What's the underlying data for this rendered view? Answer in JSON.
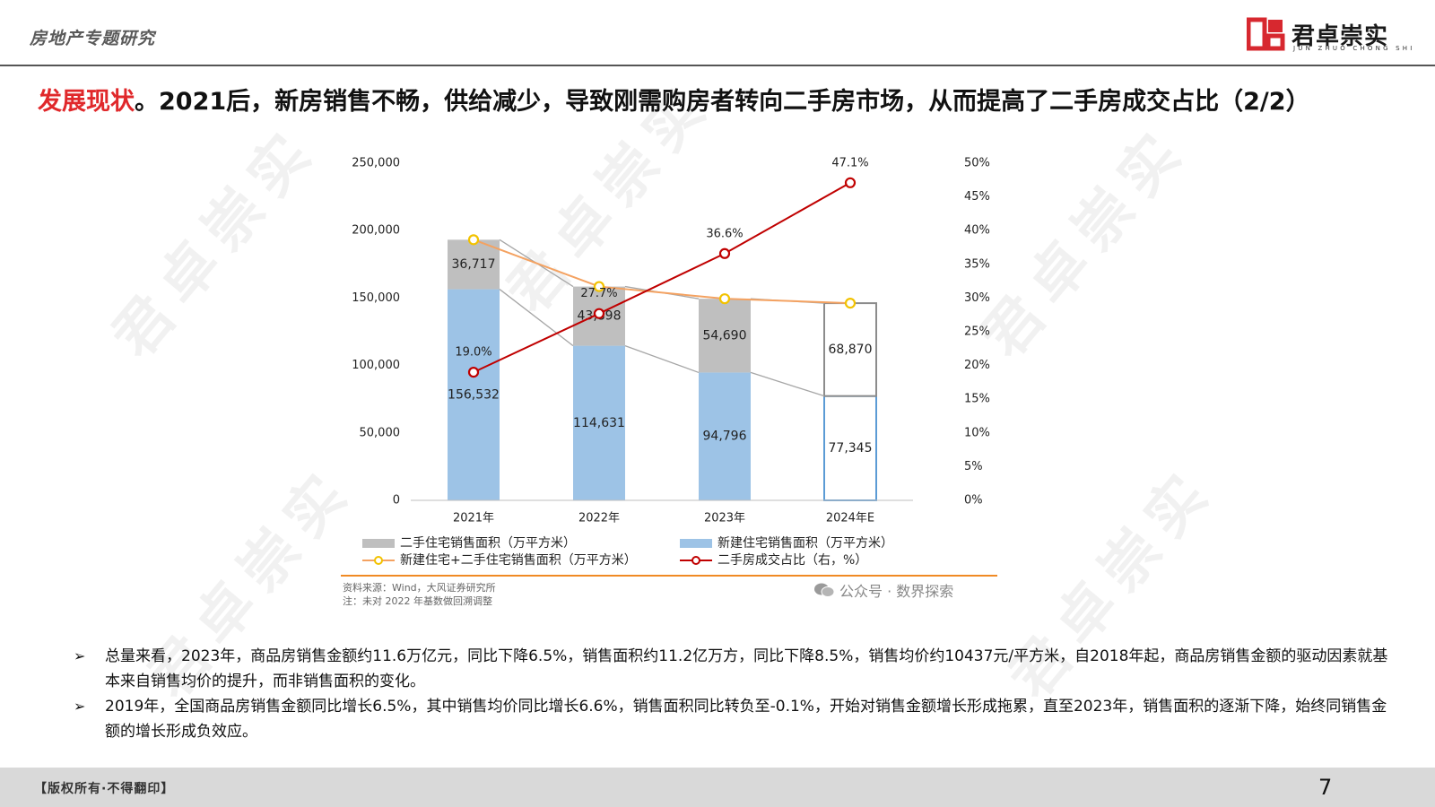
{
  "header": {
    "title": "房地产专题研究",
    "logo_text": "君卓崇实",
    "logo_sub": "JUN ZHUO CHONG SHI"
  },
  "slide": {
    "title_highlight": "发展现状",
    "title_rest": "。2021后，新房销售不畅，供给减少，导致刚需购房者转向二手房市场，从而提高了二手房成交占比（2/2）"
  },
  "watermark": "君卓崇实",
  "chart_data": {
    "type": "bar",
    "categories": [
      "2021年",
      "2022年",
      "2023年",
      "2024年E"
    ],
    "series": [
      {
        "name": "新建住宅销售面积（万平方米）",
        "type": "bar",
        "axis": "left",
        "color": "#9dc3e6",
        "values": [
          156532,
          114631,
          94796,
          77345
        ],
        "labels": [
          "156,532",
          "114,631",
          "94,796",
          "77,345"
        ]
      },
      {
        "name": "二手住宅销售面积（万平方米）",
        "type": "bar",
        "axis": "left",
        "color": "#bfbfbf",
        "values": [
          36717,
          43898,
          54690,
          68870
        ],
        "labels": [
          "36,717",
          "43,898",
          "54,690",
          "68,870"
        ]
      },
      {
        "name": "新建住宅+二手住宅销售面积（万平方米）",
        "type": "line",
        "axis": "left",
        "color": "#f4a261",
        "values": [
          193249,
          158529,
          149486,
          146215
        ]
      },
      {
        "name": "二手房成交占比（右，%）",
        "type": "line",
        "axis": "right",
        "color": "#c00000",
        "values": [
          19.0,
          27.7,
          36.6,
          47.1
        ],
        "labels": [
          "19.0%",
          "27.7%",
          "36.6%",
          "47.1%"
        ]
      }
    ],
    "estimated_category": "2024年E",
    "ylim_left": [
      0,
      250000
    ],
    "ylim_right": [
      0,
      50
    ],
    "yticks_left": [
      "0",
      "50,000",
      "100,000",
      "150,000",
      "200,000",
      "250,000"
    ],
    "yticks_right": [
      "0%",
      "5%",
      "10%",
      "15%",
      "20%",
      "25%",
      "30%",
      "35%",
      "40%",
      "45%",
      "50%"
    ],
    "legend_position": "bottom",
    "grid": false
  },
  "notes": {
    "source": "资料来源：Wind，大风证券研究所",
    "note": "注：未对 2022 年基数做回溯调整"
  },
  "wechat_label": "公众号 · 数界探索",
  "bullets": [
    {
      "marker": "➢",
      "text": "总量来看，2023年，商品房销售金额约11.6万亿元，同比下降6.5%，销售面积约11.2亿万方，同比下降8.5%，销售均价约10437元/平方米，自2018年起，商品房销售金额的驱动因素就基本来自销售均价的提升，而非销售面积的变化。"
    },
    {
      "marker": "➢",
      "text": "2019年，全国商品房销售金额同比增长6.5%，其中销售均价同比增长6.6%，销售面积同比转负至-0.1%，开始对销售金额增长形成拖累，直至2023年，销售面积的逐渐下降，始终同销售金额的增长形成负效应。"
    }
  ],
  "footer": {
    "copyright": "【版权所有·不得翻印】",
    "page": "7"
  }
}
